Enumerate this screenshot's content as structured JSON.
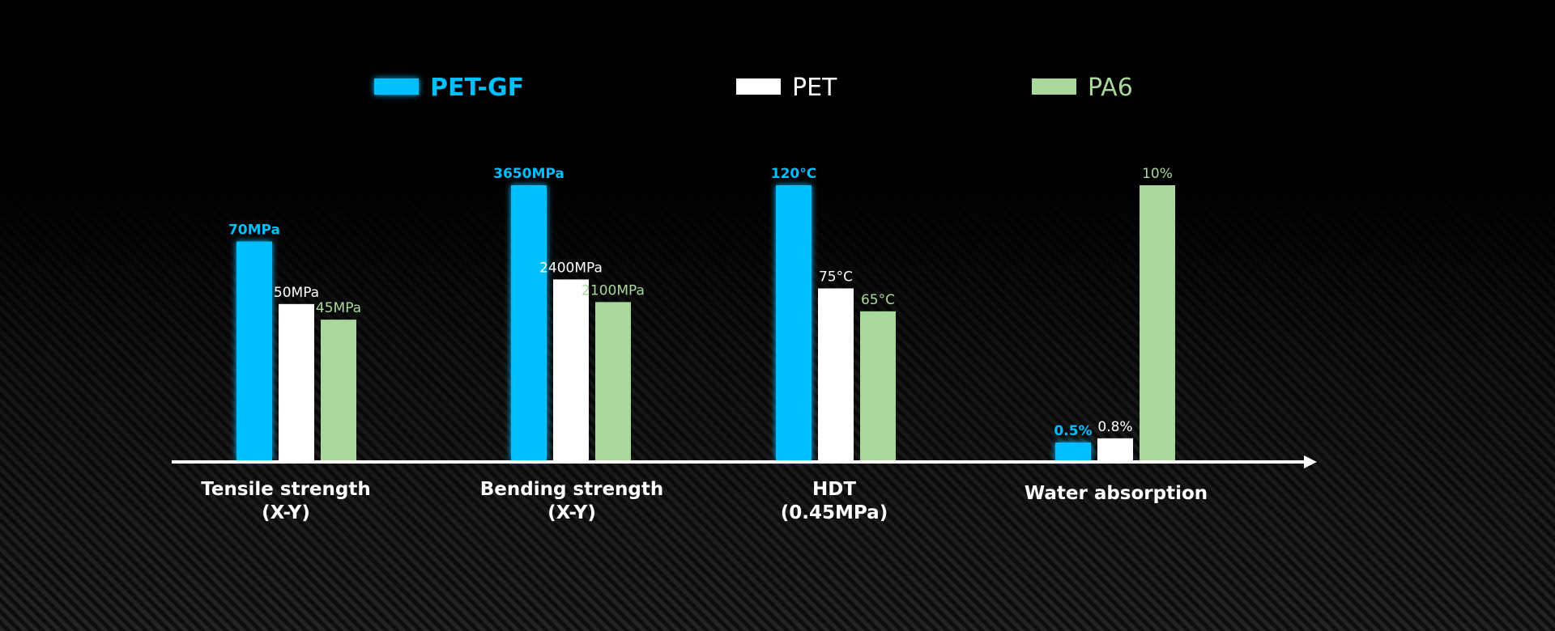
{
  "chart_data": {
    "type": "bar",
    "title": "",
    "xlabel": "",
    "ylabel": "",
    "legend_placement": "top",
    "grid": false,
    "categories": [
      [
        "Tensile strength",
        "(X-Y)"
      ],
      [
        "Bending strength",
        "(X-Y)"
      ],
      [
        "HDT",
        "(0.45MPa)"
      ],
      [
        "Water absorption"
      ]
    ],
    "series": [
      {
        "name": "PET-GF",
        "color": "#00BFFF",
        "values": [
          70,
          3650,
          120,
          0.5
        ],
        "labels": [
          "70MPa",
          "3650MPa",
          "120°C",
          "0.5%"
        ]
      },
      {
        "name": "PET",
        "color": "#FFFFFF",
        "values": [
          50,
          2400,
          75,
          0.8
        ],
        "labels": [
          "50MPa",
          "2400MPa",
          "75°C",
          "0.8%"
        ]
      },
      {
        "name": "PA6",
        "color": "#A8D89A",
        "values": [
          45,
          2100,
          65,
          10
        ],
        "labels": [
          "45MPa",
          "2100MPa",
          "65°C",
          "10%"
        ]
      }
    ],
    "group_max": [
      88,
      3650,
      120,
      10
    ],
    "axis_color": "#FFFFFF"
  }
}
